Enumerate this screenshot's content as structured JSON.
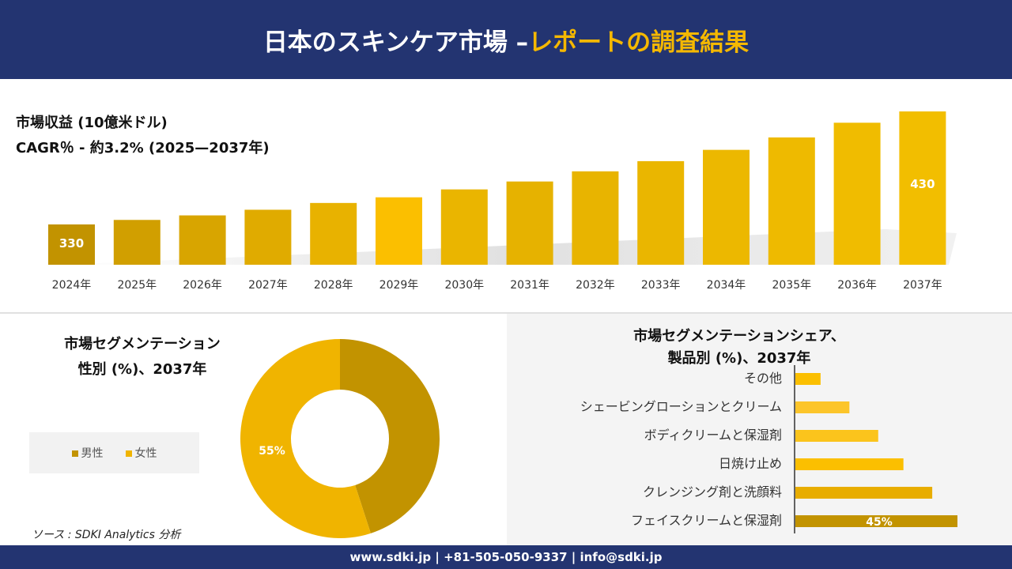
{
  "header": {
    "title_main": "日本のスキンケア市場 –",
    "title_accent": "レポートの調査結果"
  },
  "revenue": {
    "title": "市場収益 (10億米ドル)",
    "cagr": "CAGR％ - 約3.2% (2025—2037年)"
  },
  "chart_data": [
    {
      "type": "bar",
      "categories": [
        "2024年",
        "2025年",
        "2026年",
        "2027年",
        "2028年",
        "2029年",
        "2030年",
        "2031年",
        "2032年",
        "2033年",
        "2034年",
        "2035年",
        "2036年",
        "2037年"
      ],
      "values": [
        330,
        334,
        338,
        343,
        349,
        354,
        361,
        368,
        377,
        386,
        396,
        407,
        420,
        430
      ],
      "data_labels": {
        "0": "330",
        "13": "430"
      },
      "colors": [
        "#c29300",
        "#d19f00",
        "#d8a500",
        "#e0ab00",
        "#e8b200",
        "#fbbf00",
        "#eab500",
        "#e6b200",
        "#e8b400",
        "#eab600",
        "#ecb800",
        "#eeba00",
        "#f0bc00",
        "#f2be00"
      ]
    },
    {
      "type": "pie",
      "title": "市場セグメンテーション 性別 (%)、2037年",
      "labels": [
        "男性",
        "女性"
      ],
      "values": [
        45,
        55
      ],
      "data_labels": {
        "1": "55%"
      },
      "colors": [
        "#c29300",
        "#f0b400"
      ],
      "legend": "left"
    },
    {
      "type": "bar",
      "orientation": "horizontal",
      "title": "市場セグメンテーションシェア、製品別 (%)、2037年",
      "categories": [
        "その他",
        "シェービングローションとクリーム",
        "ボディクリームと保湿剤",
        "日焼け止め",
        "クレンジング剤と洗顔料",
        "フェイスクリームと保湿剤"
      ],
      "values": [
        7,
        15,
        23,
        30,
        38,
        45
      ],
      "data_labels": {
        "5": "45%"
      },
      "colors": [
        "#fbbf00",
        "#fcc52a",
        "#fbc41c",
        "#fbbf00",
        "#e8ad00",
        "#c29300"
      ]
    }
  ],
  "segment": {
    "title1": "市場セグメンテーション",
    "title2": "性別 (%)、2037年",
    "legend_male": "男性",
    "legend_female": "女性"
  },
  "share": {
    "title1": "市場セグメンテーションシェア、",
    "title2": "製品別 (%)、2037年"
  },
  "source": "ソース : SDKI Analytics 分析",
  "footer": "www.sdki.jp | +81-505-050-9337 | info@sdki.jp"
}
